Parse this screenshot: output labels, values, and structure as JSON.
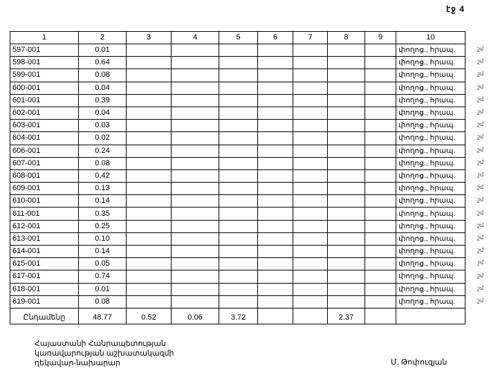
{
  "page_label": "էջ 4",
  "table": {
    "headers": [
      "1",
      "2",
      "3",
      "4",
      "5",
      "6",
      "7",
      "8",
      "9",
      "10"
    ],
    "rows": [
      {
        "code": "597-001",
        "area": "0.01",
        "note": "փողոց., հրապ."
      },
      {
        "code": "598-001",
        "area": "0.64",
        "note": "փողոց., հրապ."
      },
      {
        "code": "599-001",
        "area": "0.08",
        "note": "փողոց., հրապ."
      },
      {
        "code": "600-001",
        "area": "0.04",
        "note": "փողոց., հրապ."
      },
      {
        "code": "601-001",
        "area": "0.39",
        "note": "փողոց., հրապ."
      },
      {
        "code": "602-001",
        "area": "0.04",
        "note": "փողոց., հրապ."
      },
      {
        "code": "603-001",
        "area": "0.03",
        "note": "փողոց., հրապ."
      },
      {
        "code": "604-001",
        "area": "0.02",
        "note": "փողոց., հրապ."
      },
      {
        "code": "606-001",
        "area": "0.24",
        "note": "փողոց., հրապ."
      },
      {
        "code": "607-001",
        "area": "0.08",
        "note": "փողոց., հրապ."
      },
      {
        "code": "608-001",
        "area": "0.42",
        "note": "փողոց., հրապ."
      },
      {
        "code": "609-001",
        "area": "0.13",
        "note": "փողոց., հրապ."
      },
      {
        "code": "610-001",
        "area": "0.14",
        "note": "փողոց., հրապ."
      },
      {
        "code": "611-001",
        "area": "0.35",
        "note": "փողոց., հրապ."
      },
      {
        "code": "612-001",
        "area": "0.25",
        "note": "փողոց., հրապ."
      },
      {
        "code": "613-001",
        "area": "0.10",
        "note": "փողոց., հրապ."
      },
      {
        "code": "614-001",
        "area": "0.14",
        "note": "փողոց., հրապ."
      },
      {
        "code": "615-001",
        "area": "0.05",
        "note": "փողոց., հրապ."
      },
      {
        "code": "617-001",
        "area": "0.74",
        "note": "փողոց., հրապ."
      },
      {
        "code": "618-001",
        "area": "0.01",
        "note": "փողոց., հրապ."
      },
      {
        "code": "619-001",
        "area": "0.08",
        "note": "փողոց., հրապ."
      }
    ],
    "total": {
      "label": "Ընդամենը",
      "values": [
        "48.77",
        "0.52",
        "0.06",
        "3.72",
        "",
        "",
        "2.37",
        "",
        ""
      ]
    }
  },
  "margin_mark": "շմ",
  "footer": {
    "lines": [
      "Հայաստանի Հանրապետության",
      "կառավարության աշխատակազմի",
      "ղեկավար-նախարար"
    ],
    "signer": "Մ. Թոփուզյան"
  }
}
